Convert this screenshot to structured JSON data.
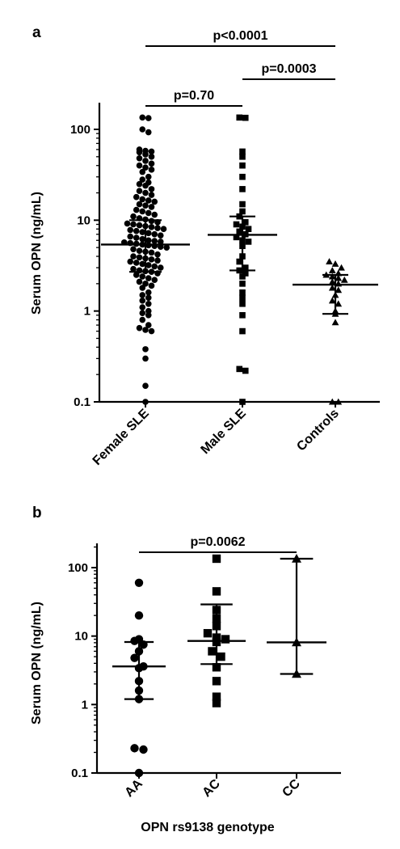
{
  "colors": {
    "ink": "#000000",
    "background": "#ffffff"
  },
  "chart_data": [
    {
      "panel": "a",
      "type": "scatter",
      "scale": "log",
      "ylabel": "Serum OPN (ng/mL)",
      "xlabel": "",
      "ylim": [
        0.1,
        200
      ],
      "yticks": [
        0.1,
        1,
        10,
        100
      ],
      "ytick_labels": [
        "0.1",
        "1",
        "10",
        "100"
      ],
      "categories": [
        "Female SLE",
        "Male SLE",
        "Controls"
      ],
      "markers": [
        "circle",
        "square",
        "triangle"
      ],
      "summary": [
        {
          "median": 5.4,
          "q1": 2.7,
          "q3": 10.0
        },
        {
          "median": 6.9,
          "q1": 2.8,
          "q3": 11.0
        },
        {
          "median": 1.95,
          "q1": 0.93,
          "q3": 2.5
        }
      ],
      "points": [
        [
          135,
          133,
          100,
          93,
          60,
          58,
          57,
          56,
          53,
          50,
          48,
          45,
          42,
          40,
          38,
          36,
          34,
          30,
          28,
          26,
          25,
          24,
          22,
          21,
          20,
          19,
          18,
          17,
          16.5,
          16,
          15,
          14.5,
          14,
          13,
          12.5,
          12,
          11.5,
          11,
          10.5,
          10.2,
          9.8,
          9.5,
          9.2,
          9,
          8.8,
          8.6,
          8.4,
          8.2,
          8,
          7.8,
          7.6,
          7.4,
          7.2,
          7,
          6.8,
          6.6,
          6.4,
          6.2,
          6,
          5.9,
          5.8,
          5.7,
          5.6,
          5.5,
          5.4,
          5.3,
          5.2,
          5.1,
          5,
          4.8,
          4.6,
          4.5,
          4.4,
          4.2,
          4,
          3.9,
          3.8,
          3.7,
          3.6,
          3.5,
          3.4,
          3.3,
          3.2,
          3.1,
          3,
          2.9,
          2.8,
          2.75,
          2.7,
          2.6,
          2.5,
          2.4,
          2.3,
          2.2,
          2.1,
          2,
          1.9,
          1.8,
          1.6,
          1.5,
          1.4,
          1.3,
          1.2,
          1.1,
          1,
          0.95,
          0.9,
          0.8,
          0.7,
          0.65,
          0.62,
          0.6,
          0.38,
          0.3,
          0.15,
          0.1
        ],
        [
          135,
          134,
          57,
          50,
          40,
          30,
          22,
          15,
          12.5,
          11,
          9.5,
          9,
          8.5,
          8,
          7.5,
          7,
          6.5,
          6,
          5.8,
          5.2,
          4,
          3.5,
          3,
          2.8,
          2.6,
          2.4,
          2,
          1.6,
          1.4,
          1.2,
          0.9,
          0.6,
          0.23,
          0.22,
          0.1
        ],
        [
          3.5,
          3.3,
          3,
          2.8,
          2.6,
          2.5,
          2.4,
          2.3,
          2.2,
          2.1,
          2,
          1.8,
          1.7,
          1.5,
          1.3,
          1.2,
          1,
          0.93,
          0.75,
          0.1,
          0.1
        ]
      ],
      "comparisons": [
        {
          "label": "p<0.0001",
          "from": 0,
          "to": 2
        },
        {
          "label": "p=0.0003",
          "from": 1,
          "to": 2
        },
        {
          "label": "p=0.70",
          "from": 0,
          "to": 1
        }
      ]
    },
    {
      "panel": "b",
      "type": "scatter",
      "scale": "log",
      "ylabel": "Serum OPN (ng/mL)",
      "xlabel": "OPN rs9138 genotype",
      "ylim": [
        0.1,
        200
      ],
      "yticks": [
        0.1,
        1,
        10,
        100
      ],
      "ytick_labels": [
        "0.1",
        "1",
        "10",
        "100"
      ],
      "categories": [
        "AA",
        "AC",
        "CC"
      ],
      "markers": [
        "circle",
        "square",
        "triangle"
      ],
      "summary": [
        {
          "median": 3.6,
          "q1": 1.2,
          "q3": 8.2
        },
        {
          "median": 8.5,
          "q1": 3.9,
          "q3": 29
        },
        {
          "median": 8.1,
          "q1": 2.8,
          "q3": 135
        }
      ],
      "points": [
        [
          60,
          20,
          9,
          8.5,
          7.5,
          6,
          4.8,
          3.6,
          3.4,
          2.2,
          1.6,
          1.2,
          0.23,
          0.22,
          0.1
        ],
        [
          135,
          45,
          24,
          18,
          14,
          11,
          9.5,
          9,
          8.2,
          6,
          5,
          3.5,
          2.2,
          1.3,
          1.05
        ],
        [
          135,
          8.1,
          2.8
        ]
      ],
      "comparisons": [
        {
          "label": "p=0.0062",
          "from": 0,
          "to": 2
        }
      ]
    }
  ]
}
